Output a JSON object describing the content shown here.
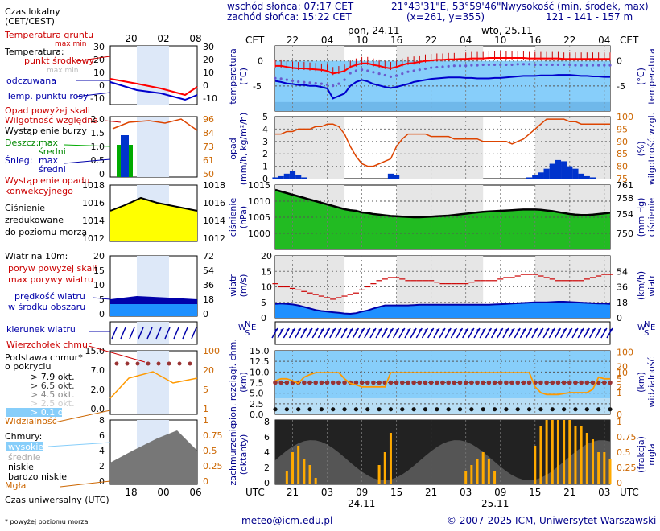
{
  "header": {
    "sunrise": "wschód słońca: 07:17 CET",
    "sunset": "zachód słońca: 15:22 CET",
    "coords": "21°43'31\"E, 53°59'46\"N",
    "grid": "(x=261, y=355)",
    "height_label": "wysokość (min, środek, max)",
    "height_values": "121 - 141 - 157 m",
    "cet": "CET",
    "utc": "UTC",
    "day1": "pon, 24.11",
    "day2": "wto, 25.11",
    "date1": "24.11",
    "date2": "25.11"
  },
  "legend": {
    "time_local": "Czas lokalny",
    "time_local2": "(CET/CEST)",
    "temp_ground": "Temperatura gruntu",
    "temp_ground_sub": "max min",
    "temperature": "Temperatura:",
    "mid_point": "punkt środkowy",
    "max_min": "max min",
    "perceived": "odczuwana",
    "dew": "Temp. punktu rosy",
    "precip_over": "Opad powyżej skali",
    "humidity": "Wilgotność względna",
    "storm": "Wystąpienie burzy",
    "rain": "Deszcz:",
    "rain_max": "max",
    "rain_mean": "średni",
    "snow": "Śnieg:",
    "snow_max": "max",
    "snow_mean": "średni",
    "conv": "Wystąpienie opadu",
    "conv2": "konwekcyjnego",
    "pressure": "Ciśnienie",
    "pressure2": "zredukowane",
    "pressure3": "do poziomu morza",
    "wind10": "Wiatr na 10m:",
    "gust_over": "poryw powyżej skali",
    "gust_max": "max porywy wiatru",
    "wind_speed": "prędkość wiatru",
    "wind_speed2": "w środku obszaru",
    "wind_dir": "kierunek wiatru",
    "cloud_top": "Wierzchołek chmur",
    "cloud_base": "Podstawa chmur*",
    "cloud_base2": "o pokryciu",
    "okt79": "> 7.9 okt.",
    "okt65": "> 6.5 okt.",
    "okt45": "> 4.5 okt.",
    "okt25": "> 2.5 okt.",
    "okt01": "> 0.1 okt.",
    "visibility": "Widzialność",
    "clouds": "Chmury:",
    "high": "wysokie",
    "mid": "średnie",
    "low": "niskie",
    "vlow": "bardzo niskie",
    "fog": "Mgła",
    "utc_time": "Czas uniwersalny (UTC)",
    "footnote": "* powyżej poziomu morza"
  },
  "axis_titles": {
    "temp_left": "temperatura",
    "temp_left2": "(°C)",
    "temp_right": "temperatura",
    "temp_right2": "(°C)",
    "precip_left": "opad",
    "precip_left2": "(mm/h, kg/m²/h)",
    "hum_right": "wilgotność wzgl.",
    "hum_right2": "(%)",
    "pres_left": "ciśnienie",
    "pres_left2": "(hPa)",
    "pres_right": "ciśnienie",
    "pres_right2": "(mm Hg)",
    "wind_left": "wiatr",
    "wind_left2": "(m/s)",
    "wind_right": "wiatr",
    "wind_right2": "(km/h)",
    "cloud_left": "pion. rozciągł. chm.",
    "cloud_left2": "(km)",
    "vis_right": "widzialność",
    "vis_right2": "(km)",
    "cov_left": "zachmurzenie",
    "cov_left2": "(oktanty)",
    "fog_right": "mgła",
    "fog_right2": "(frakcja)",
    "N": "N",
    "W": "W",
    "E": "E",
    "S": "S"
  },
  "footer": {
    "email": "meteo@icm.edu.pl",
    "copyright": "© 2007-2025 ICM, Uniwersytet Warszawski"
  },
  "colors": {
    "red": "#cc0000",
    "blue": "#0000cc",
    "navy": "#00008b",
    "green": "#00aa00",
    "orange": "#cc6600",
    "yellow": "#ffff00",
    "sky": "#87cefa",
    "gray": "#e6e6e6"
  },
  "chart_data": [
    {
      "type": "line",
      "title": "temperatura (°C)",
      "x_hours_local": [
        19,
        20,
        21,
        22,
        23,
        0,
        1,
        2,
        3,
        4,
        5,
        6,
        7,
        8,
        9,
        10,
        11,
        12,
        13,
        14,
        15,
        16,
        17,
        18,
        19,
        20,
        21,
        22,
        23,
        0,
        1,
        2,
        3,
        4,
        5,
        6,
        7,
        8,
        9,
        10,
        11,
        12,
        13,
        14,
        15,
        16,
        17,
        18,
        19,
        20,
        21,
        22,
        23,
        0,
        1,
        2,
        3,
        4,
        5
      ],
      "ylim": [
        -10,
        3
      ],
      "yticks": [
        0,
        -5
      ],
      "series": [
        {
          "name": "temperatura",
          "values": [
            -1,
            -1,
            -1.2,
            -1.4,
            -1.5,
            -1.5,
            -1.6,
            -1.7,
            -1.8,
            -2,
            -2.5,
            -2.3,
            -2,
            -1.2,
            -0.8,
            -0.5,
            -0.5,
            -0.8,
            -1,
            -1.3,
            -1.5,
            -1.2,
            -0.8,
            -0.5,
            -0.4,
            -0.2,
            0,
            0.1,
            0.2,
            0.2,
            0.3,
            0.3,
            0.4,
            0.4,
            0.5,
            0.5,
            0.5,
            0.6,
            0.6,
            0.6,
            0.6,
            0.6,
            0.6,
            0.6,
            0.5,
            0.5,
            0.5,
            0.5,
            0.5,
            0.5,
            0.4,
            0.4,
            0.4,
            0.4,
            0.4,
            0.4,
            0.4,
            0.4,
            0.4
          ]
        },
        {
          "name": "odczuwana",
          "values": [
            -4,
            -4.2,
            -4.5,
            -4.6,
            -4.8,
            -4.8,
            -5,
            -5,
            -5.2,
            -5.5,
            -7.5,
            -7,
            -6.5,
            -5,
            -4.2,
            -3.8,
            -4.1,
            -4.6,
            -4.9,
            -5.2,
            -5.4,
            -5.2,
            -4.9,
            -4.6,
            -4.2,
            -4,
            -3.8,
            -3.6,
            -3.5,
            -3.4,
            -3.3,
            -3.3,
            -3.3,
            -3.4,
            -3.4,
            -3.5,
            -3.5,
            -3.5,
            -3.4,
            -3.4,
            -3.3,
            -3.2,
            -3.1,
            -3.0,
            -3.0,
            -3.0,
            -2.9,
            -2.9,
            -2.9,
            -2.8,
            -2.8,
            -2.8,
            -2.9,
            -3.0,
            -3.0,
            -3.1,
            -3.1,
            -3.2,
            -3.2
          ]
        },
        {
          "name": "punkt rosy",
          "values": [
            -2.5,
            -2.6,
            -2.8,
            -3,
            -3.2,
            -3.3,
            -3.4,
            -3.5,
            -3.6,
            -3.8,
            -4,
            -3.6,
            -2.8,
            -1.5,
            -1,
            -0.8,
            -1,
            -1.3,
            -1.6,
            -1.9,
            -2.2,
            -2,
            -1.6,
            -1.2,
            -1,
            -0.8,
            -0.6,
            -0.4,
            -0.3,
            -0.2,
            -0.1,
            0,
            0,
            0,
            0.1,
            0.1,
            0.2,
            0.2,
            0.2,
            0.2,
            0.2,
            0.2,
            0.3,
            0.3,
            0.3,
            0.2,
            0.2,
            0.2,
            0.2,
            0.2,
            0.2,
            0.2,
            0.1,
            0.1,
            0.1,
            0.1,
            0.1,
            0.1,
            0.1
          ]
        }
      ]
    },
    {
      "type": "bar",
      "title": "opad (mm/h) / wilgotność wzgl. (%)",
      "ylim": [
        0,
        5
      ],
      "yticks": [
        0,
        1,
        2,
        3,
        4,
        5
      ],
      "y2lim": [
        75,
        100
      ],
      "y2ticks": [
        75,
        80,
        85,
        90,
        95,
        100
      ],
      "series": [
        {
          "name": "wilgotność",
          "values": [
            93,
            93,
            94,
            94,
            95,
            95,
            95,
            96,
            96,
            97,
            97,
            96,
            93,
            88,
            84,
            81,
            80,
            80,
            81,
            82,
            83,
            88,
            91,
            93,
            93,
            93,
            93,
            92,
            92,
            92,
            92,
            91,
            91,
            91,
            91,
            91,
            90,
            90,
            90,
            90,
            90,
            89,
            90,
            91,
            93,
            95,
            97,
            99,
            99,
            99,
            99,
            98,
            98,
            97,
            97,
            97,
            97,
            97,
            97
          ]
        },
        {
          "name": "opad średni",
          "values": [
            0.1,
            0.2,
            0.4,
            0.6,
            0.3,
            0.1,
            0,
            0,
            0,
            0,
            0,
            0,
            0,
            0,
            0,
            0,
            0,
            0,
            0,
            0,
            0.4,
            0.3,
            0,
            0,
            0,
            0,
            0,
            0,
            0,
            0,
            0,
            0,
            0,
            0,
            0,
            0,
            0,
            0,
            0,
            0,
            0,
            0,
            0,
            0,
            0.1,
            0.3,
            0.5,
            0.8,
            1.2,
            1.5,
            1.4,
            1.0,
            0.8,
            0.4,
            0.2,
            0.1,
            0,
            0,
            0
          ]
        }
      ]
    },
    {
      "type": "area",
      "title": "ciśnienie (hPa)",
      "ylim": [
        995,
        1015
      ],
      "yticks": [
        1000,
        1005,
        1010,
        1015
      ],
      "y2ticks": [
        750,
        754,
        758,
        761
      ],
      "values": [
        1013.5,
        1013,
        1012.5,
        1012,
        1011.5,
        1011,
        1010.5,
        1010,
        1009.5,
        1009,
        1008.5,
        1008,
        1007.5,
        1007.2,
        1007,
        1006.5,
        1006.3,
        1006,
        1005.8,
        1005.6,
        1005.4,
        1005.3,
        1005.2,
        1005.1,
        1005,
        1005,
        1005.1,
        1005.2,
        1005.3,
        1005.4,
        1005.5,
        1005.7,
        1005.9,
        1006.1,
        1006.3,
        1006.5,
        1006.7,
        1006.8,
        1006.9,
        1007,
        1007.1,
        1007.2,
        1007.3,
        1007.4,
        1007.4,
        1007.4,
        1007.3,
        1007.1,
        1006.9,
        1006.6,
        1006.3,
        1006,
        1005.8,
        1005.7,
        1005.7,
        1005.8,
        1006,
        1006.2,
        1006.4
      ]
    },
    {
      "type": "line",
      "title": "wiatr (m/s)",
      "ylim": [
        0,
        20
      ],
      "yticks": [
        0,
        5,
        10,
        15,
        20
      ],
      "y2ticks": [
        0,
        18,
        36,
        54
      ],
      "series": [
        {
          "name": "prędkość wiatru",
          "values": [
            4.5,
            4.6,
            4.5,
            4.3,
            4,
            3.5,
            3,
            2.5,
            2.2,
            2,
            1.8,
            1.6,
            1.4,
            1.3,
            1.5,
            2,
            2.4,
            3,
            3.5,
            4,
            4,
            4,
            4,
            4,
            4.1,
            4.2,
            4.2,
            4.2,
            4.2,
            4.2,
            4.2,
            4.2,
            4.2,
            4.2,
            4.2,
            4.2,
            4.2,
            4.2,
            4.3,
            4.4,
            4.5,
            4.6,
            4.7,
            4.8,
            4.9,
            5,
            5,
            5,
            5.1,
            5.2,
            5.2,
            5.1,
            5,
            4.9,
            4.8,
            4.7,
            4.6,
            4.6,
            4.5
          ]
        },
        {
          "name": "max porywy",
          "values": [
            11,
            10,
            10,
            9.5,
            9,
            8.5,
            8,
            7.5,
            7,
            6.5,
            6,
            6.5,
            7,
            7.5,
            8,
            9,
            10,
            11,
            12,
            12.5,
            13,
            13,
            12.5,
            12,
            12,
            12,
            12,
            12,
            11.5,
            11,
            11,
            11,
            11,
            11,
            11.5,
            12,
            12,
            12,
            12,
            12.5,
            13,
            13,
            13.5,
            14,
            14,
            14,
            13.5,
            13,
            12.5,
            12,
            12,
            12,
            12,
            12,
            12.5,
            13,
            13.5,
            14,
            14
          ]
        }
      ]
    },
    {
      "type": "scatter",
      "title": "pion. rozciągł. chm. (km) / widzialność (km)",
      "ylim": [
        0,
        15
      ],
      "yticks": [
        0,
        2.5,
        5,
        7.5,
        10,
        15
      ],
      "y2ticks": [
        0,
        1,
        2,
        5,
        10,
        20,
        100
      ],
      "series": [
        {
          "name": "wierzchołek chmur",
          "values": [
            7.5,
            7.5,
            7.5,
            7.5,
            7.5,
            7.5,
            7.5,
            7.5,
            7.5,
            7.5,
            7.5,
            7.5,
            7.5,
            7.5,
            7.5,
            7.5,
            7.5,
            7.5,
            7.5,
            7.5,
            7.5,
            7.5,
            7.5,
            7.5,
            7.5,
            7.5,
            7.5,
            7.5,
            7.5,
            7.5,
            7.5,
            7.5,
            7.5,
            7.5,
            7.5,
            7.5,
            7.5,
            7.5,
            7.5,
            7.5,
            7.5,
            7.5,
            7.5,
            7.5,
            7.5,
            7.5,
            7.5,
            7.5,
            7.5,
            7.5,
            7.5,
            7.5,
            7.5,
            7.5,
            7.5,
            7.5,
            7.5,
            7.5,
            7.5
          ]
        },
        {
          "name": "widzialność",
          "values": [
            4,
            5,
            5,
            4,
            3,
            6,
            8,
            10,
            10,
            10,
            10,
            10,
            5,
            3,
            2.5,
            2,
            2,
            2,
            2,
            2,
            10,
            10,
            10,
            10,
            10,
            10,
            10,
            10,
            10,
            10,
            10,
            10,
            10,
            10,
            10,
            10,
            10,
            10,
            10,
            10,
            10,
            10,
            10,
            10,
            10,
            2,
            1,
            0.8,
            0.8,
            0.8,
            0.9,
            1,
            1,
            1,
            1,
            1.5,
            6,
            5,
            5
          ]
        }
      ]
    },
    {
      "type": "bar",
      "title": "zachmurzenie (oktanty) / mgła (frakcja)",
      "ylim": [
        0,
        8
      ],
      "yticks": [
        0,
        2,
        4,
        6,
        8
      ],
      "y2ticks": [
        0,
        0.25,
        0.5,
        0.75,
        1
      ],
      "values": [
        0,
        0,
        0.2,
        0.5,
        0.6,
        0.4,
        0.3,
        0.1,
        0,
        0,
        0,
        0,
        0,
        0,
        0,
        0,
        0,
        0,
        0.3,
        0.5,
        0.8,
        0,
        0,
        0,
        0,
        0,
        0,
        0,
        0,
        0,
        0,
        0,
        0,
        0.2,
        0.3,
        0.4,
        0.5,
        0.4,
        0.2,
        0,
        0,
        0,
        0,
        0,
        0,
        0.6,
        0.9,
        1,
        1,
        1,
        1,
        1,
        0.9,
        0.9,
        0.8,
        0.7,
        0.5,
        0.5,
        0.4
      ]
    }
  ],
  "small_chart_ticks": {
    "temp": [
      "30",
      "20",
      "10",
      "0",
      "-10"
    ],
    "precip": [
      "2.0",
      "1.5",
      "1.0",
      "0.5",
      "0"
    ],
    "hum": [
      "96",
      "84",
      "73",
      "61",
      "50"
    ],
    "pres": [
      "1018",
      "1016",
      "1014",
      "1012"
    ],
    "wind": [
      "20",
      "15",
      "10",
      "5",
      "0"
    ],
    "wind_kmh": [
      "72",
      "54",
      "36",
      "18",
      "0"
    ],
    "cloud": [
      "15.0",
      "7.0",
      "2.0",
      "0.0"
    ],
    "vis": [
      "100",
      "20",
      "5",
      "1"
    ],
    "cov": [
      "8",
      "6",
      "4",
      "2",
      "0"
    ],
    "fog": [
      "1",
      "0.75",
      "0.5",
      "0.25",
      "0"
    ],
    "local_hours": [
      "20",
      "02",
      "08"
    ],
    "utc_hours": [
      "18",
      "00",
      "06"
    ]
  },
  "main_ticks": {
    "local": [
      "22",
      "04",
      "10",
      "16",
      "22",
      "04",
      "10",
      "16",
      "22",
      "04"
    ],
    "utc": [
      "21",
      "03",
      "09",
      "15",
      "21",
      "03",
      "09",
      "15",
      "21",
      "03"
    ],
    "temp": [
      "0",
      "-5"
    ],
    "temp_r": [
      "0",
      "-5"
    ],
    "precip": [
      "5",
      "4",
      "3",
      "2",
      "1",
      "0"
    ],
    "hum": [
      "100",
      "95",
      "90",
      "85",
      "80",
      "75"
    ],
    "pres": [
      "1015",
      "1010",
      "1005",
      "1000"
    ],
    "pres_mm": [
      "761",
      "758",
      "754",
      "750"
    ],
    "wind": [
      "20",
      "15",
      "10",
      "5",
      "0"
    ],
    "wind_kmh": [
      "54",
      "36",
      "18",
      "0"
    ],
    "cloud": [
      "15.0",
      "12.5",
      "10.0",
      "7.5",
      "5.0",
      "2.5",
      "0.0"
    ],
    "vis": [
      "100",
      "20",
      "10",
      "5",
      "2",
      "1",
      "0"
    ],
    "cov": [
      "8",
      "6",
      "4",
      "2",
      "0"
    ],
    "fog": [
      "1",
      "0.75",
      "0.5",
      "0.25",
      "0"
    ]
  }
}
